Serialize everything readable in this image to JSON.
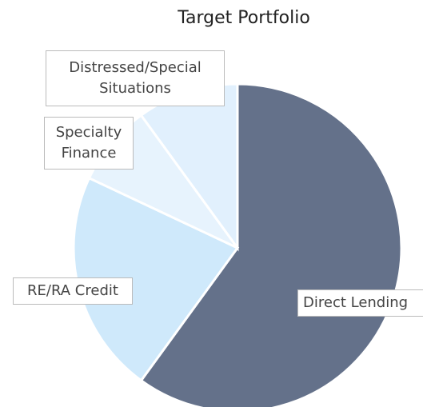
{
  "chart_data": {
    "type": "pie",
    "title": "Target Portfolio",
    "categories": [
      "Direct Lending",
      "RE/RA Credit",
      "Specialty Finance",
      "Distressed/Special Situations"
    ],
    "values": [
      60,
      22,
      8,
      10
    ],
    "colors": [
      "#64718a",
      "#cfe9fb",
      "#e7f3fd",
      "#e1f0fd"
    ]
  }
}
